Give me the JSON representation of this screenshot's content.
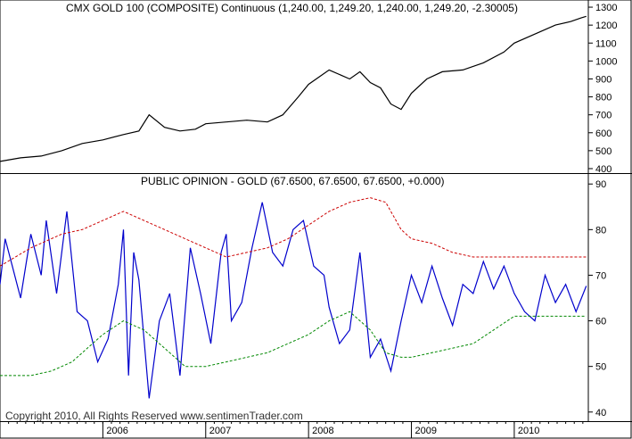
{
  "chart_data": [
    {
      "type": "line",
      "title": "CMX GOLD 100 (COMPOSITE) Continuous (1,240.00, 1,249.20, 1,240.00, 1,249.20, -2.30005)",
      "ylim": [
        380,
        1340
      ],
      "yticks": [
        "1300",
        "1200",
        "1100",
        "1000",
        "900",
        "800",
        "700",
        "600",
        "500",
        "400"
      ],
      "grid": false,
      "series": [
        {
          "color": "#000000",
          "x": [
            2005.0,
            2005.2,
            2005.4,
            2005.6,
            2005.8,
            2006.0,
            2006.2,
            2006.35,
            2006.45,
            2006.6,
            2006.75,
            2006.9,
            2007.0,
            2007.2,
            2007.4,
            2007.6,
            2007.75,
            2007.9,
            2008.0,
            2008.2,
            2008.4,
            2008.5,
            2008.6,
            2008.7,
            2008.8,
            2008.9,
            2009.0,
            2009.15,
            2009.3,
            2009.5,
            2009.7,
            2009.9,
            2010.0,
            2010.2,
            2010.4,
            2010.55,
            2010.65,
            2010.7
          ],
          "y": [
            440,
            460,
            470,
            500,
            540,
            560,
            590,
            610,
            700,
            630,
            610,
            620,
            650,
            660,
            670,
            660,
            700,
            800,
            870,
            950,
            900,
            940,
            880,
            850,
            760,
            730,
            820,
            900,
            940,
            950,
            990,
            1050,
            1100,
            1150,
            1200,
            1220,
            1240,
            1249.2
          ]
        }
      ]
    },
    {
      "type": "line",
      "title": "PUBLIC OPINION - GOLD (67.6500, 67.6500, 67.6500, +0.000)",
      "ylim": [
        38,
        92
      ],
      "yticks": [
        "90",
        "80",
        "70",
        "60",
        "50",
        "40"
      ],
      "categories": [
        "2006",
        "2007",
        "2008",
        "2009",
        "2010"
      ],
      "grid": false,
      "series": [
        {
          "color": "#0000cc",
          "x": [
            2005.0,
            2005.05,
            2005.12,
            2005.2,
            2005.3,
            2005.4,
            2005.45,
            2005.55,
            2005.65,
            2005.75,
            2005.85,
            2005.95,
            2006.05,
            2006.15,
            2006.2,
            2006.25,
            2006.3,
            2006.35,
            2006.45,
            2006.55,
            2006.65,
            2006.75,
            2006.85,
            2006.95,
            2007.05,
            2007.15,
            2007.2,
            2007.25,
            2007.35,
            2007.45,
            2007.55,
            2007.65,
            2007.75,
            2007.85,
            2007.95,
            2008.05,
            2008.15,
            2008.2,
            2008.3,
            2008.4,
            2008.5,
            2008.6,
            2008.7,
            2008.8,
            2008.9,
            2009.0,
            2009.1,
            2009.2,
            2009.3,
            2009.4,
            2009.5,
            2009.6,
            2009.7,
            2009.8,
            2009.9,
            2010.0,
            2010.1,
            2010.2,
            2010.3,
            2010.4,
            2010.5,
            2010.6,
            2010.7
          ],
          "y": [
            68,
            78,
            72,
            65,
            79,
            70,
            82,
            66,
            84,
            62,
            60,
            51,
            56,
            68,
            80,
            48,
            75,
            69,
            43,
            60,
            66,
            48,
            76,
            66,
            55,
            75,
            79,
            60,
            64,
            76,
            86,
            75,
            72,
            80,
            82,
            72,
            70,
            63,
            55,
            58,
            75,
            52,
            56,
            49,
            60,
            70,
            64,
            72,
            65,
            59,
            68,
            66,
            73,
            67,
            72,
            66,
            62,
            60,
            70,
            64,
            68,
            62,
            67.65
          ]
        },
        {
          "color": "#cc0000",
          "x": [
            2005.0,
            2005.3,
            2005.6,
            2005.8,
            2006.0,
            2006.2,
            2006.4,
            2006.6,
            2006.8,
            2007.0,
            2007.2,
            2007.4,
            2007.6,
            2007.8,
            2008.0,
            2008.2,
            2008.4,
            2008.6,
            2008.75,
            2008.9,
            2009.0,
            2009.2,
            2009.4,
            2009.6,
            2009.8,
            2010.0,
            2010.2,
            2010.4,
            2010.6,
            2010.7
          ],
          "y": [
            72,
            76,
            79,
            80,
            82,
            84,
            82,
            80,
            78,
            76,
            74,
            75,
            76,
            78,
            81,
            84,
            86,
            87,
            86,
            80,
            78,
            77,
            75,
            74,
            74,
            74,
            74,
            74,
            74,
            74
          ]
        },
        {
          "color": "#008800",
          "x": [
            2005.0,
            2005.3,
            2005.5,
            2005.7,
            2005.9,
            2006.0,
            2006.2,
            2006.4,
            2006.6,
            2006.8,
            2007.0,
            2007.2,
            2007.4,
            2007.6,
            2007.8,
            2008.0,
            2008.2,
            2008.4,
            2008.6,
            2008.75,
            2008.9,
            2009.0,
            2009.2,
            2009.4,
            2009.6,
            2009.8,
            2010.0,
            2010.2,
            2010.4,
            2010.6,
            2010.7
          ],
          "y": [
            48,
            48,
            49,
            51,
            55,
            57,
            60,
            58,
            54,
            50,
            50,
            51,
            52,
            53,
            55,
            57,
            60,
            62,
            58,
            53,
            52,
            52,
            53,
            54,
            55,
            58,
            61,
            61,
            61,
            61,
            61
          ]
        }
      ]
    }
  ],
  "copyright": "Copyright 2010, All Rights Reserved  www.sentimenTrader.com",
  "colors": {
    "price": "#000000",
    "opinion": "#0000cc",
    "upper_band": "#cc0000",
    "lower_band": "#008800",
    "frame": "#000000",
    "background": "#ffffff"
  }
}
